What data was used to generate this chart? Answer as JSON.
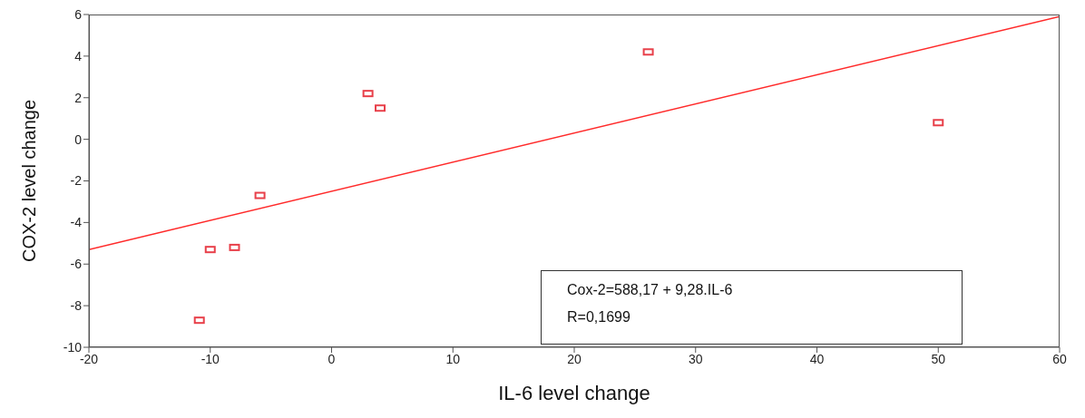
{
  "chart_data": {
    "type": "scatter",
    "xlabel": "IL-6 level change",
    "ylabel": "COX-2 level change",
    "xlim": [
      -20,
      60
    ],
    "xticks": [
      -20,
      -10,
      0,
      10,
      20,
      30,
      40,
      50,
      60
    ],
    "ylim": [
      -10,
      6
    ],
    "yticks": [
      -10,
      -8,
      -6,
      -4,
      -2,
      0,
      2,
      4,
      6
    ],
    "marker": "square",
    "series": [
      {
        "color": "#e8404a",
        "x": [
          -10.9,
          -10.0,
          -8.0,
          -5.9,
          3.0,
          4.0,
          26.1,
          50
        ],
        "values": [
          -8.7,
          -5.3,
          -5.2,
          -2.7,
          2.2,
          1.5,
          4.2,
          0.8
        ]
      },
      {
        "type": "line",
        "color": "#ff2a2a",
        "x": [
          -20,
          60
        ],
        "values": [
          -5.3,
          5.9
        ],
        "marker": "none",
        "line_style": "solid"
      }
    ],
    "annotations": [
      "Cox-2=588,17 + 9,28.IL-6",
      "R=0,1699"
    ]
  }
}
